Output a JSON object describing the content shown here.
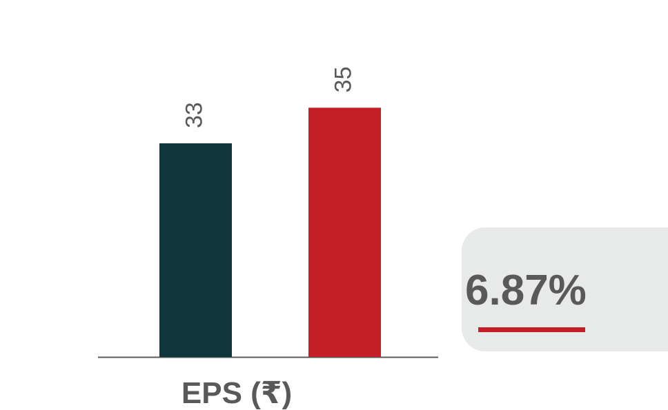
{
  "chart_data": {
    "type": "bar",
    "title": "EPS (₹)",
    "categories": [
      null,
      null
    ],
    "values": [
      33,
      35
    ],
    "colors": [
      "#0e363b",
      "#c41f26"
    ],
    "ylim": [
      21,
      36
    ],
    "annotation": "6.87%"
  }
}
